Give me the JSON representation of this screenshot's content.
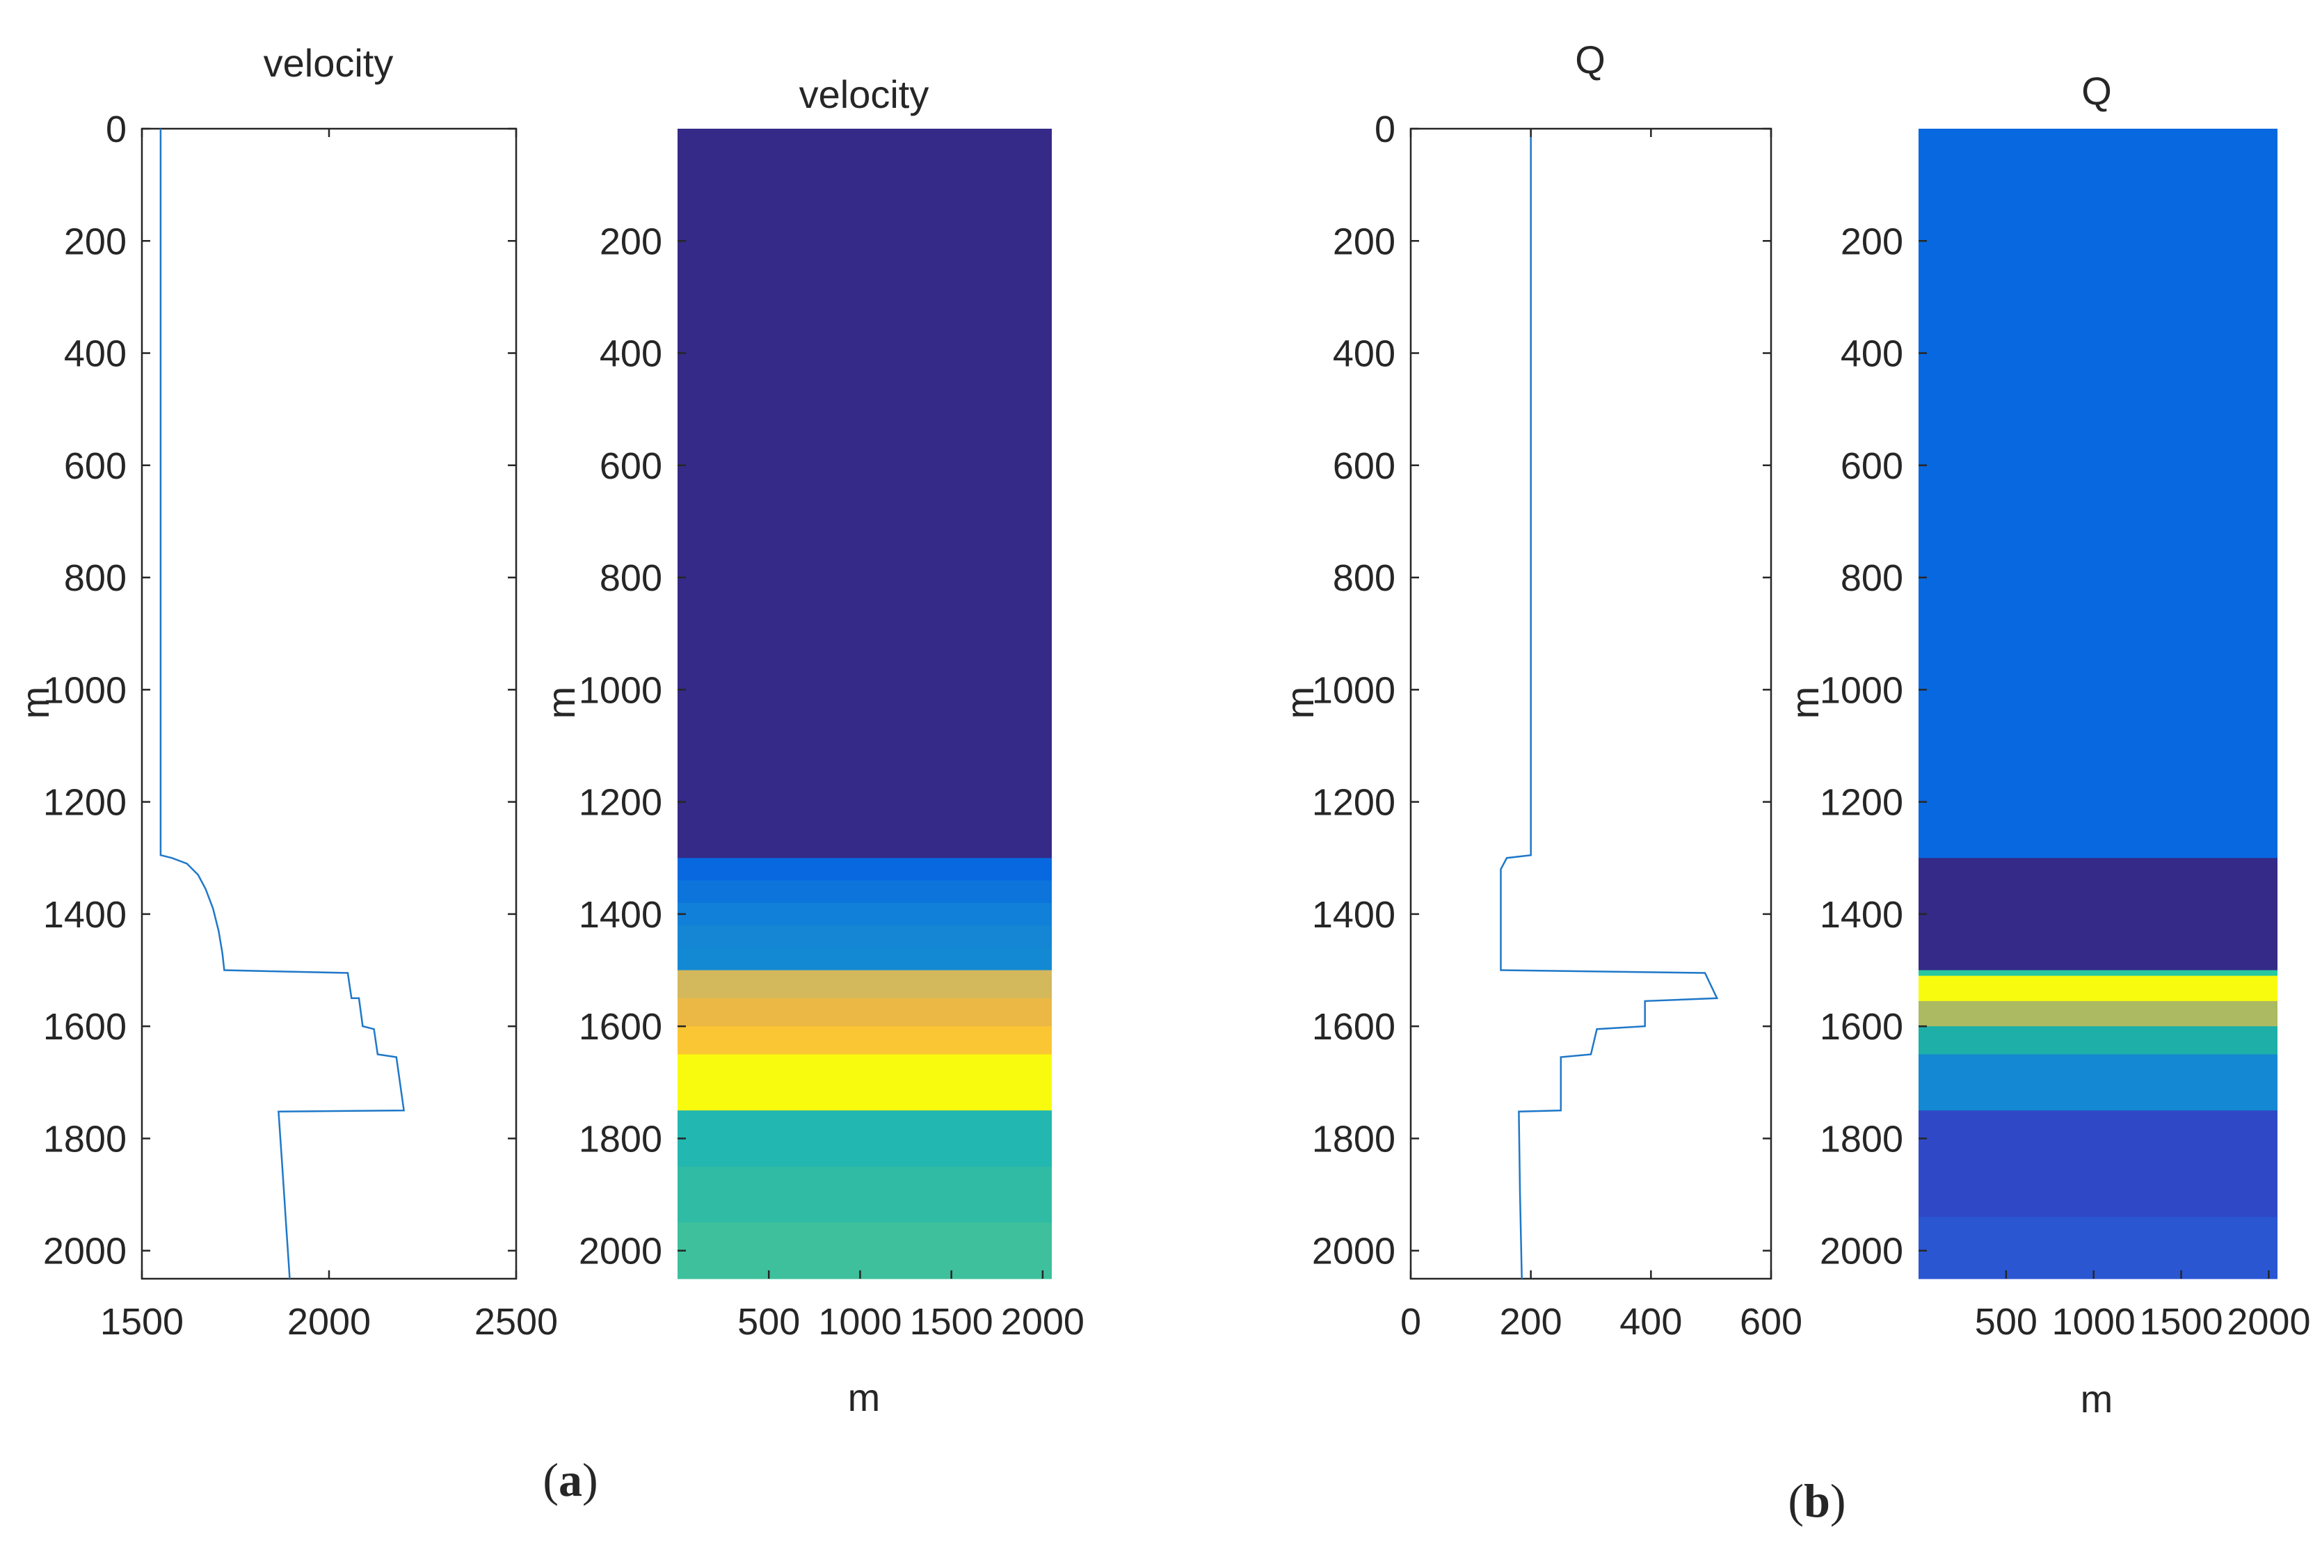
{
  "colors": {
    "line": "#1f78c8",
    "axis": "#262626",
    "text": "#262626"
  },
  "panels": [
    {
      "open": "(",
      "letter": "a",
      "close": ")"
    },
    {
      "open": "(",
      "letter": "b",
      "close": ")"
    }
  ],
  "chart_data": [
    {
      "id": "vel-profile",
      "type": "line",
      "title": "velocity",
      "xlabel": "",
      "ylabel": "m",
      "xlim": [
        1500,
        2500
      ],
      "ylim": [
        0,
        2050
      ],
      "y_reversed": true,
      "xticks": [
        1500,
        2000,
        2500
      ],
      "yticks": [
        0,
        200,
        400,
        600,
        800,
        1000,
        1200,
        1400,
        1600,
        1800,
        2000
      ],
      "series": [
        {
          "name": "velocity",
          "points": [
            [
              1550,
              0
            ],
            [
              1550,
              1295
            ],
            [
              1580,
              1300
            ],
            [
              1620,
              1310
            ],
            [
              1650,
              1330
            ],
            [
              1670,
              1355
            ],
            [
              1690,
              1390
            ],
            [
              1705,
              1430
            ],
            [
              1715,
              1470
            ],
            [
              1720,
              1500
            ],
            [
              2050,
              1505
            ],
            [
              2060,
              1550
            ],
            [
              2080,
              1550
            ],
            [
              2090,
              1600
            ],
            [
              2120,
              1605
            ],
            [
              2130,
              1650
            ],
            [
              2180,
              1655
            ],
            [
              2200,
              1750
            ],
            [
              1865,
              1752
            ],
            [
              1875,
              1850
            ],
            [
              1885,
              1950
            ],
            [
              1895,
              2050
            ]
          ]
        }
      ]
    },
    {
      "id": "vel-model",
      "type": "heatmap",
      "title": "velocity",
      "xlabel": "m",
      "ylabel": "m",
      "xlim": [
        0,
        2050
      ],
      "ylim": [
        0,
        2050
      ],
      "y_reversed": true,
      "xticks": [
        500,
        1000,
        1500,
        2000
      ],
      "yticks": [
        200,
        400,
        600,
        800,
        1000,
        1200,
        1400,
        1600,
        1800,
        2000
      ],
      "layers": [
        {
          "top": 0,
          "bottom": 1300,
          "color": "#352a87"
        },
        {
          "top": 1300,
          "bottom": 1340,
          "color": "#0868e0"
        },
        {
          "top": 1340,
          "bottom": 1380,
          "color": "#0d74dc"
        },
        {
          "top": 1380,
          "bottom": 1420,
          "color": "#1180d8"
        },
        {
          "top": 1420,
          "bottom": 1460,
          "color": "#1486d4"
        },
        {
          "top": 1460,
          "bottom": 1500,
          "color": "#1489d3"
        },
        {
          "top": 1500,
          "bottom": 1550,
          "color": "#d4b85c"
        },
        {
          "top": 1550,
          "bottom": 1600,
          "color": "#ecb845"
        },
        {
          "top": 1600,
          "bottom": 1650,
          "color": "#fbc633"
        },
        {
          "top": 1650,
          "bottom": 1750,
          "color": "#f9fb0e"
        },
        {
          "top": 1750,
          "bottom": 1850,
          "color": "#22b7b0"
        },
        {
          "top": 1850,
          "bottom": 1950,
          "color": "#30bba4"
        },
        {
          "top": 1950,
          "bottom": 2050,
          "color": "#3dc09b"
        }
      ]
    },
    {
      "id": "q-profile",
      "type": "line",
      "title": "Q",
      "xlabel": "",
      "ylabel": "m",
      "xlim": [
        0,
        600
      ],
      "ylim": [
        0,
        2050
      ],
      "y_reversed": true,
      "xticks": [
        0,
        200,
        400,
        600
      ],
      "yticks": [
        0,
        200,
        400,
        600,
        800,
        1000,
        1200,
        1400,
        1600,
        1800,
        2000
      ],
      "series": [
        {
          "name": "Q",
          "points": [
            [
              200,
              0
            ],
            [
              200,
              1295
            ],
            [
              160,
              1300
            ],
            [
              150,
              1320
            ],
            [
              150,
              1500
            ],
            [
              490,
              1505
            ],
            [
              510,
              1550
            ],
            [
              390,
              1555
            ],
            [
              390,
              1600
            ],
            [
              310,
              1605
            ],
            [
              300,
              1650
            ],
            [
              250,
              1655
            ],
            [
              250,
              1750
            ],
            [
              180,
              1752
            ],
            [
              182,
              1900
            ],
            [
              185,
              2050
            ]
          ]
        }
      ]
    },
    {
      "id": "q-model",
      "type": "heatmap",
      "title": "Q",
      "xlabel": "m",
      "ylabel": "m",
      "xlim": [
        0,
        2050
      ],
      "ylim": [
        0,
        2050
      ],
      "y_reversed": true,
      "xticks": [
        500,
        1000,
        1500,
        2000
      ],
      "yticks": [
        200,
        400,
        600,
        800,
        1000,
        1200,
        1400,
        1600,
        1800,
        2000
      ],
      "layers": [
        {
          "top": 0,
          "bottom": 1300,
          "color": "#0868e0"
        },
        {
          "top": 1300,
          "bottom": 1500,
          "color": "#352a87"
        },
        {
          "top": 1500,
          "bottom": 1510,
          "color": "#28c8a0"
        },
        {
          "top": 1510,
          "bottom": 1555,
          "color": "#f9fb0e"
        },
        {
          "top": 1555,
          "bottom": 1600,
          "color": "#acba62"
        },
        {
          "top": 1600,
          "bottom": 1650,
          "color": "#1dafa8"
        },
        {
          "top": 1650,
          "bottom": 1750,
          "color": "#1488d2"
        },
        {
          "top": 1750,
          "bottom": 1940,
          "color": "#2f49c6"
        },
        {
          "top": 1940,
          "bottom": 2050,
          "color": "#2a56d2"
        }
      ]
    }
  ]
}
